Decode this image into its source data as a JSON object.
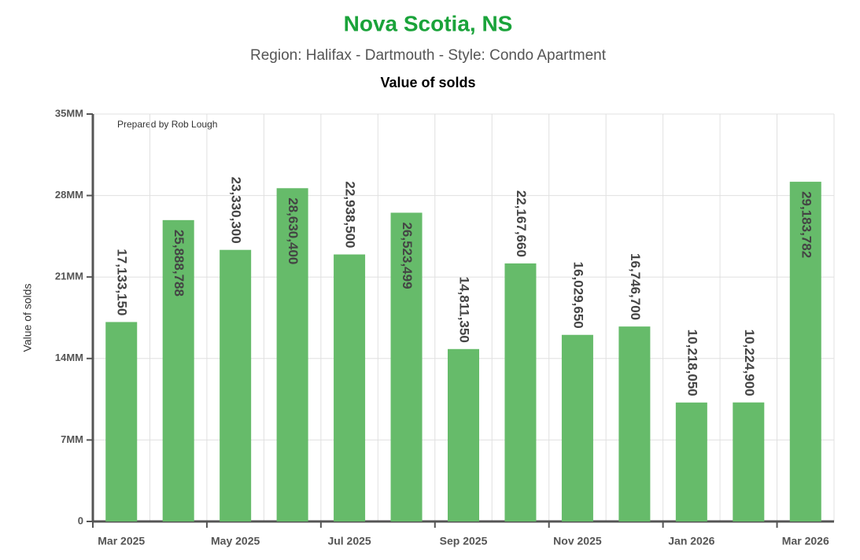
{
  "chart_data": {
    "type": "bar",
    "title": "Nova Scotia, NS",
    "subtitle": "Region: Halifax - Dartmouth - Style: Condo Apartment",
    "chart_title": "Value of solds",
    "y_label": "Value of solds",
    "annotation": "Prepared by Rob Lough",
    "categories": [
      "Mar 2025",
      null,
      "May 2025",
      null,
      "Jul 2025",
      null,
      "Sep 2025",
      null,
      "Nov 2025",
      null,
      "Jan 2026",
      null,
      "Mar 2026"
    ],
    "values": [
      17133150,
      25888788,
      23330300,
      28630400,
      22938500,
      26523499,
      14811350,
      22167660,
      16029650,
      16746700,
      10218050,
      10224900,
      29183782
    ],
    "value_labels": [
      "17,133,150",
      "25,888,788",
      "23,330,300",
      "28,630,400",
      "22,938,500",
      "26,523,499",
      "14,811,350",
      "22,167,660",
      "16,029,650",
      "16,746,700",
      "10,218,050",
      "10,224,900",
      "29,183,782"
    ],
    "color": "#66bb6a",
    "ylim": [
      0,
      35000000
    ],
    "yticks": [
      0,
      {
        "value": 7000000,
        "label": "7MM"
      },
      {
        "value": 14000000,
        "label": "14MM"
      },
      {
        "value": 21000000,
        "label": "21MM"
      },
      {
        "value": 28000000,
        "label": "28MM"
      },
      {
        "value": 35000000,
        "label": "35MM"
      }
    ],
    "grid": true
  }
}
